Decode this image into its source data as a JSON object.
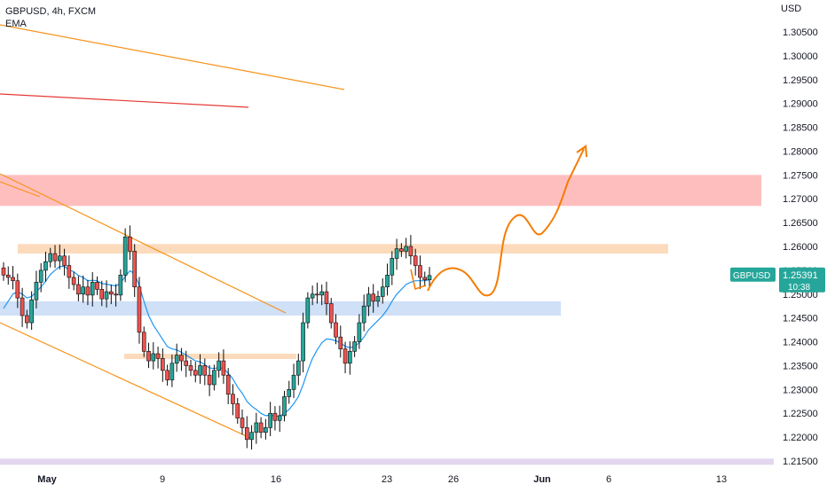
{
  "header": {
    "symbol_line": "GBPUSD, 4h, FXCM",
    "indicator": "EMA"
  },
  "price_axis": {
    "currency": "USD",
    "ticks": [
      "1.30500",
      "1.30000",
      "1.29500",
      "1.29000",
      "1.28500",
      "1.28000",
      "1.27500",
      "1.27000",
      "1.26500",
      "1.26000",
      "1.25500",
      "1.25000",
      "1.24500",
      "1.24000",
      "1.23500",
      "1.23000",
      "1.22500",
      "1.22000",
      "1.21500"
    ]
  },
  "price_badge": {
    "symbol": "GBPUSD",
    "price": "1.25391",
    "countdown": "10:38",
    "color": "#26a69a"
  },
  "time_axis": {
    "labels": [
      "May",
      "9",
      "16",
      "23",
      "26",
      "Jun",
      "6",
      "13"
    ]
  },
  "colors": {
    "up": "#26a69a",
    "down": "#ef5350",
    "candle_outline": "#0b0b0b",
    "ema": "#2196f3",
    "trendline": "#f7931a",
    "red_line": "#e53935",
    "red_zone": "#ffb3b3",
    "orange_zone": "#fcd5b0",
    "blue_zone": "#c7daf6",
    "purple_zone": "#ddd0ec",
    "projection": "#f57c00"
  },
  "chart_data": {
    "type": "candlestick",
    "symbol": "GBPUSD",
    "timeframe": "4h",
    "source": "FXCM",
    "ylim": [
      1.2125,
      1.3085
    ],
    "x_ticks": [
      "May",
      "9",
      "16",
      "23",
      "26",
      "Jun",
      "6",
      "13"
    ],
    "close": [
      1.254,
      1.2535,
      1.2528,
      1.2492,
      1.2455,
      1.244,
      1.2488,
      1.2525,
      1.255,
      1.2568,
      1.2585,
      1.257,
      1.258,
      1.256,
      1.2535,
      1.252,
      1.25,
      1.2515,
      1.2498,
      1.2525,
      1.251,
      1.249,
      1.2505,
      1.25,
      1.2498,
      1.254,
      1.262,
      1.259,
      1.2515,
      1.242,
      1.238,
      1.236,
      1.2375,
      1.2365,
      1.234,
      1.232,
      1.2355,
      1.2372,
      1.236,
      1.235,
      1.234,
      1.233,
      1.235,
      1.233,
      1.231,
      1.234,
      1.236,
      1.233,
      1.229,
      1.227,
      1.224,
      1.222,
      1.2195,
      1.221,
      1.223,
      1.221,
      1.222,
      1.225,
      1.2235,
      1.2245,
      1.2285,
      1.23,
      1.233,
      1.236,
      1.244,
      1.2492,
      1.25,
      1.2498,
      1.2505,
      1.248,
      1.244,
      1.241,
      1.2385,
      1.2355,
      1.238,
      1.24,
      1.244,
      1.2475,
      1.25,
      1.2485,
      1.2495,
      1.2515,
      1.254,
      1.2575,
      1.2595,
      1.259,
      1.26,
      1.258,
      1.256,
      1.2535,
      1.253,
      1.2539
    ],
    "open_first": 1.2555,
    "ema": [
      1.247,
      1.2485,
      1.25,
      1.2505,
      1.25,
      1.2492,
      1.2495,
      1.2505,
      1.2515,
      1.2527,
      1.2541,
      1.255,
      1.2558,
      1.2558,
      1.2551,
      1.2547,
      1.2539,
      1.2535,
      1.2528,
      1.2529,
      1.2528,
      1.2522,
      1.2521,
      1.2519,
      1.2517,
      1.2523,
      1.2537,
      1.2549,
      1.2543,
      1.2517,
      1.2485,
      1.2455,
      1.2435,
      1.242,
      1.2405,
      1.239,
      1.2385,
      1.2383,
      1.2378,
      1.2372,
      1.2366,
      1.236,
      1.2358,
      1.2352,
      1.2345,
      1.2344,
      1.2346,
      1.2344,
      1.2334,
      1.2322,
      1.2305,
      1.2292,
      1.2275,
      1.2265,
      1.2258,
      1.225,
      1.2245,
      1.2246,
      1.2244,
      1.2244,
      1.225,
      1.2258,
      1.227,
      1.2285,
      1.231,
      1.234,
      1.2365,
      1.2383,
      1.2398,
      1.2406,
      1.2405,
      1.2402,
      1.2398,
      1.239,
      1.2388,
      1.239,
      1.2398,
      1.241,
      1.2425,
      1.2435,
      1.2445,
      1.2455,
      1.2468,
      1.2485,
      1.25,
      1.251,
      1.252,
      1.2525,
      1.2528,
      1.2528,
      1.2528,
      1.253
    ],
    "zones": [
      {
        "name": "resistance",
        "y": [
          1.2685,
          1.275
        ]
      },
      {
        "name": "supply",
        "y": [
          1.2585,
          1.2605
        ]
      },
      {
        "name": "demand",
        "y": [
          1.2455,
          1.2485
        ]
      },
      {
        "name": "minor",
        "y": [
          1.2365,
          1.2375
        ]
      },
      {
        "name": "support",
        "y": [
          1.2142,
          1.2155
        ]
      }
    ],
    "last_price": 1.25391
  }
}
